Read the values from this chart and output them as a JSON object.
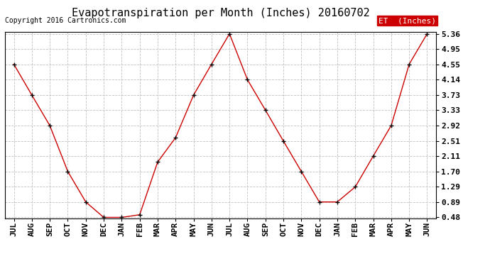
{
  "title": "Evapotranspiration per Month (Inches) 20160702",
  "copyright": "Copyright 2016 Cartronics.com",
  "legend_label": "ET  (Inches)",
  "x_labels": [
    "JUL",
    "AUG",
    "SEP",
    "OCT",
    "NOV",
    "DEC",
    "JAN",
    "FEB",
    "MAR",
    "APR",
    "MAY",
    "JUN",
    "JUL",
    "AUG",
    "SEP",
    "OCT",
    "NOV",
    "DEC",
    "JAN",
    "FEB",
    "MAR",
    "APR",
    "MAY",
    "JUN"
  ],
  "y_values": [
    4.55,
    3.73,
    2.92,
    1.7,
    0.89,
    0.48,
    0.48,
    0.55,
    1.95,
    2.6,
    3.73,
    4.55,
    5.36,
    4.14,
    3.33,
    2.51,
    1.7,
    0.89,
    0.89,
    1.29,
    2.11,
    2.92,
    4.55,
    5.36
  ],
  "y_ticks": [
    0.48,
    0.89,
    1.29,
    1.7,
    2.11,
    2.51,
    2.92,
    3.33,
    3.73,
    4.14,
    4.55,
    4.95,
    5.36
  ],
  "y_tick_labels": [
    "0.48",
    "0.89",
    "1.29",
    "1.70",
    "2.11",
    "2.51",
    "2.92",
    "3.33",
    "3.73",
    "4.14",
    "4.55",
    "4.95",
    "5.36"
  ],
  "y_min": 0.48,
  "y_max": 5.36,
  "line_color": "#cc0000",
  "marker_color": "#000000",
  "background_color": "#ffffff",
  "grid_color": "#c0c0c0",
  "title_fontsize": 11,
  "tick_fontsize": 8,
  "copyright_fontsize": 7,
  "legend_bg": "#cc0000",
  "legend_text_color": "#ffffff",
  "legend_fontsize": 8
}
